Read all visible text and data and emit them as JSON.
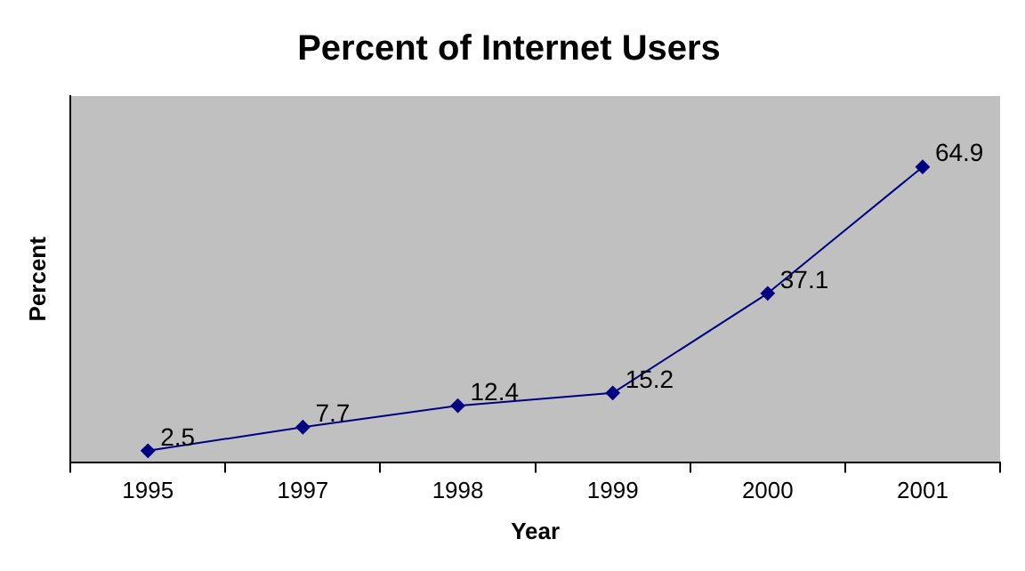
{
  "chart_data": {
    "type": "line",
    "title": "Percent of Internet Users",
    "xlabel": "Year",
    "ylabel": "Percent",
    "categories": [
      "1995",
      "1997",
      "1998",
      "1999",
      "2000",
      "2001"
    ],
    "series": [
      {
        "color": "#000080",
        "values": [
          2.5,
          7.7,
          12.4,
          15.2,
          37.1,
          64.9
        ]
      }
    ],
    "data_labels": true,
    "marker": "diamond",
    "line_style": "solid",
    "grid": false,
    "legend": false
  }
}
